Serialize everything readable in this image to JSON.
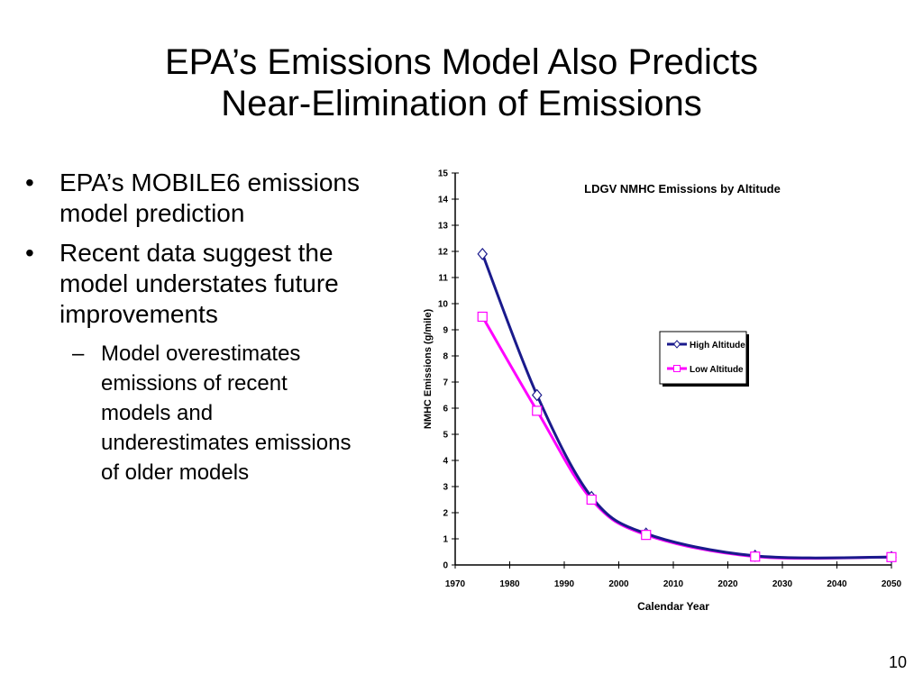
{
  "slide": {
    "title_lines": [
      "EPA’s Emissions Model Also Predicts",
      "Near-Elimination of Emissions"
    ],
    "bullets": [
      {
        "marker": "•",
        "text": "EPA’s MOBILE6 emissions model prediction"
      },
      {
        "marker": "•",
        "text": "Recent data suggest the model understates future improvements"
      }
    ],
    "sub_bullet": {
      "marker": "–",
      "text": "Model overestimates emissions of recent models and underestimates emissions of older models"
    },
    "page_number": "10"
  },
  "chart_data": {
    "type": "line",
    "title": "LDGV NMHC Emissions by Altitude",
    "xlabel": "Calendar Year",
    "ylabel": "NMHC Emissions (g/mile)",
    "xlim": [
      1970,
      2050
    ],
    "ylim": [
      0,
      15
    ],
    "x_ticks": [
      1970,
      1980,
      1990,
      2000,
      2010,
      2020,
      2030,
      2040,
      2050
    ],
    "y_ticks": [
      0,
      1,
      2,
      3,
      4,
      5,
      6,
      7,
      8,
      9,
      10,
      11,
      12,
      13,
      14,
      15
    ],
    "grid": false,
    "legend_position": "right",
    "series": [
      {
        "name": "High Altitude",
        "color": "#1a1a8c",
        "marker": "diamond",
        "x": [
          1975,
          1985,
          1995,
          2005,
          2025,
          2050
        ],
        "y": [
          11.9,
          6.5,
          2.6,
          1.2,
          0.35,
          0.3
        ]
      },
      {
        "name": "Low Altitude",
        "color": "#ff00ff",
        "marker": "square",
        "x": [
          1975,
          1985,
          1995,
          2005,
          2025,
          2050
        ],
        "y": [
          9.5,
          5.9,
          2.5,
          1.15,
          0.32,
          0.3
        ]
      }
    ]
  }
}
